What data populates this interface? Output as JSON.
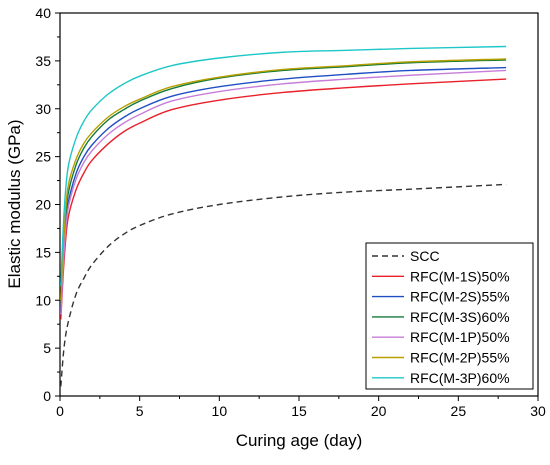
{
  "chart_data": {
    "type": "line",
    "title": "",
    "xlabel": "Curing age (day)",
    "ylabel": "Elastic modulus (GPa)",
    "xlim": [
      0,
      30
    ],
    "ylim": [
      0,
      40
    ],
    "xticks": [
      "0",
      "5",
      "10",
      "15",
      "20",
      "25",
      "30"
    ],
    "yticks": [
      "0",
      "5",
      "10",
      "15",
      "20",
      "25",
      "30",
      "35",
      "40"
    ],
    "grid": false,
    "legend_position": "bottom-right",
    "x": [
      0.05,
      0.25,
      0.5,
      1,
      1.5,
      2,
      3,
      4,
      5,
      7,
      10,
      14,
      18,
      22,
      28
    ],
    "series": [
      {
        "name": "SCC",
        "color": "#333333",
        "dash": "6,4",
        "values": [
          1.0,
          5.0,
          7.6,
          10.6,
          12.3,
          13.7,
          15.6,
          16.9,
          17.8,
          19.0,
          20.0,
          20.8,
          21.3,
          21.6,
          22.1
        ]
      },
      {
        "name": "RFC(M-1S)50%",
        "color": "#e8202a",
        "dash": "",
        "values": [
          8.0,
          14.0,
          18.5,
          21.5,
          23.3,
          24.6,
          26.3,
          27.6,
          28.5,
          29.9,
          30.9,
          31.7,
          32.2,
          32.6,
          33.1
        ]
      },
      {
        "name": "RFC(M-2S)55%",
        "color": "#1f4fc2",
        "dash": "",
        "values": [
          9.0,
          15.5,
          20.0,
          23.2,
          25.0,
          26.2,
          27.9,
          29.1,
          30.0,
          31.3,
          32.3,
          33.1,
          33.6,
          34.0,
          34.3
        ]
      },
      {
        "name": "RFC(M-3S)60%",
        "color": "#167a3a",
        "dash": "",
        "values": [
          9.5,
          16.5,
          21.0,
          24.1,
          25.9,
          27.1,
          28.8,
          29.9,
          30.8,
          32.1,
          33.2,
          34.0,
          34.4,
          34.8,
          35.1
        ]
      },
      {
        "name": "RFC(M-1P)50%",
        "color": "#c77ed8",
        "dash": "",
        "values": [
          8.5,
          15.0,
          19.5,
          22.6,
          24.4,
          25.6,
          27.3,
          28.5,
          29.4,
          30.8,
          31.8,
          32.6,
          33.1,
          33.5,
          34.0
        ]
      },
      {
        "name": "RFC(M-2P)55%",
        "color": "#b8a000",
        "dash": "",
        "values": [
          10.0,
          17.0,
          21.8,
          24.7,
          26.4,
          27.5,
          29.1,
          30.2,
          31.0,
          32.3,
          33.3,
          34.1,
          34.5,
          34.9,
          35.2
        ]
      },
      {
        "name": "RFC(M-3P)60%",
        "color": "#1ec7c7",
        "dash": "",
        "values": [
          11.5,
          19.0,
          23.8,
          26.9,
          28.7,
          29.9,
          31.5,
          32.6,
          33.4,
          34.5,
          35.3,
          35.9,
          36.1,
          36.3,
          36.5
        ]
      }
    ]
  }
}
